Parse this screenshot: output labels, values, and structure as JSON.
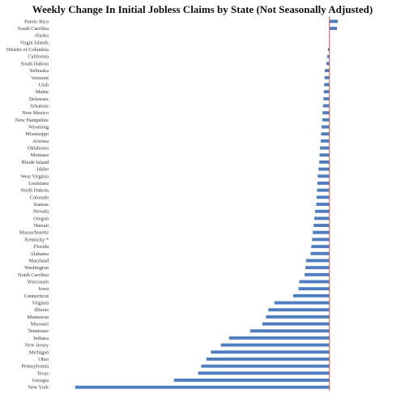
{
  "chart_data": {
    "type": "bar",
    "orientation": "horizontal",
    "title": "Weekly Change In Initial Jobless Claims by State (Not Seasonally Adjusted)",
    "xlabel": "",
    "ylabel": "",
    "grid": false,
    "legend": "none",
    "bar_color": "#4f7ec0",
    "zero_line_color": "#e05050",
    "categories": [
      "Puerto Rico",
      "South Carolina",
      "Alaska",
      "Virgin Islands",
      "District of Columbia",
      "California",
      "South Dakota",
      "Nebraska",
      "Vermont",
      "Utah",
      "Maine",
      "Delaware",
      "Arkansas",
      "New Mexico",
      "New Hampshire",
      "Wyoming",
      "Mississippi",
      "Arizona",
      "Oklahoma",
      "Montana",
      "Rhode Island",
      "Idaho",
      "West Virginia",
      "Louisiana",
      "North Dakota",
      "Colorado",
      "Kansas",
      "Nevada",
      "Oregon",
      "Hawaii",
      "Massachusetts",
      "Kentucky *",
      "Florida",
      "Alabama",
      "Maryland",
      "Washington",
      "North Carolina",
      "Wisconsin",
      "Iowa",
      "Connecticut",
      "Virginia",
      "Illinois",
      "Minnesota",
      "Missouri",
      "Tennessee",
      "Indiana",
      "New Jersey",
      "Michigan",
      "Ohio",
      "Pennsylvania",
      "Texas",
      "Georgia",
      "New York"
    ],
    "values": [
      220,
      200,
      5,
      5,
      -40,
      -60,
      -80,
      -120,
      -130,
      -140,
      -150,
      -160,
      -170,
      -180,
      -190,
      -210,
      -220,
      -230,
      -250,
      -260,
      -270,
      -290,
      -310,
      -320,
      -330,
      -340,
      -350,
      -380,
      -400,
      -420,
      -440,
      -460,
      -480,
      -500,
      -620,
      -640,
      -660,
      -800,
      -820,
      -960,
      -1460,
      -1620,
      -1680,
      -1780,
      -2100,
      -2660,
      -2880,
      -3140,
      -3260,
      -3400,
      -3480,
      -4120,
      -6740
    ],
    "xlim": [
      -6800,
      500
    ]
  }
}
